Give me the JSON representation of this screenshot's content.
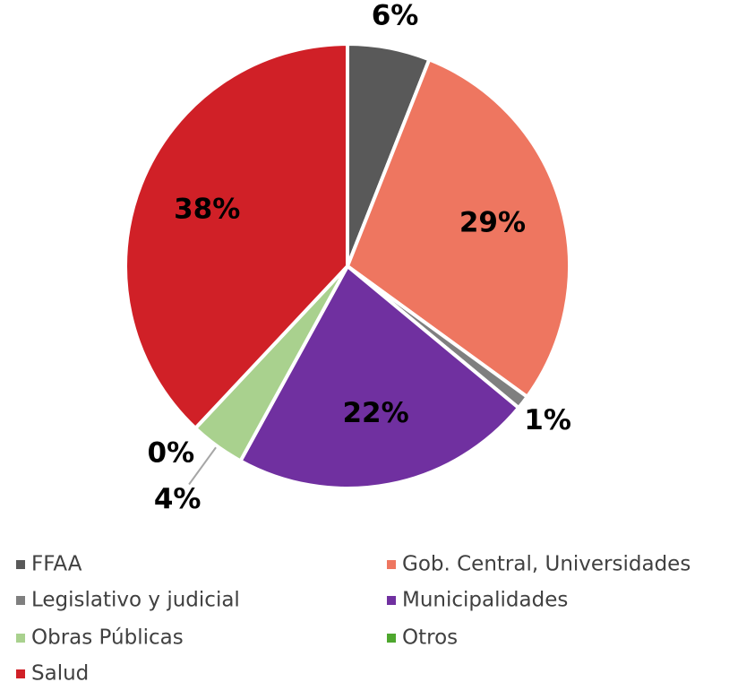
{
  "chart_data": {
    "type": "pie",
    "categories": [
      "FFAA",
      "Gob. Central, Universidades",
      "Legislativo y judicial",
      "Municipalidades",
      "Obras Públicas",
      "Otros",
      "Salud"
    ],
    "values": [
      6,
      29,
      1,
      22,
      4,
      0,
      38
    ],
    "value_labels": [
      "6%",
      "29%",
      "1%",
      "22%",
      "4%",
      "0%",
      "38%"
    ],
    "colors": [
      "#595959",
      "#ee7660",
      "#7f7f7f",
      "#7030a0",
      "#a9d18e",
      "#4ea72e",
      "#d02027"
    ],
    "legend": "bottom"
  }
}
